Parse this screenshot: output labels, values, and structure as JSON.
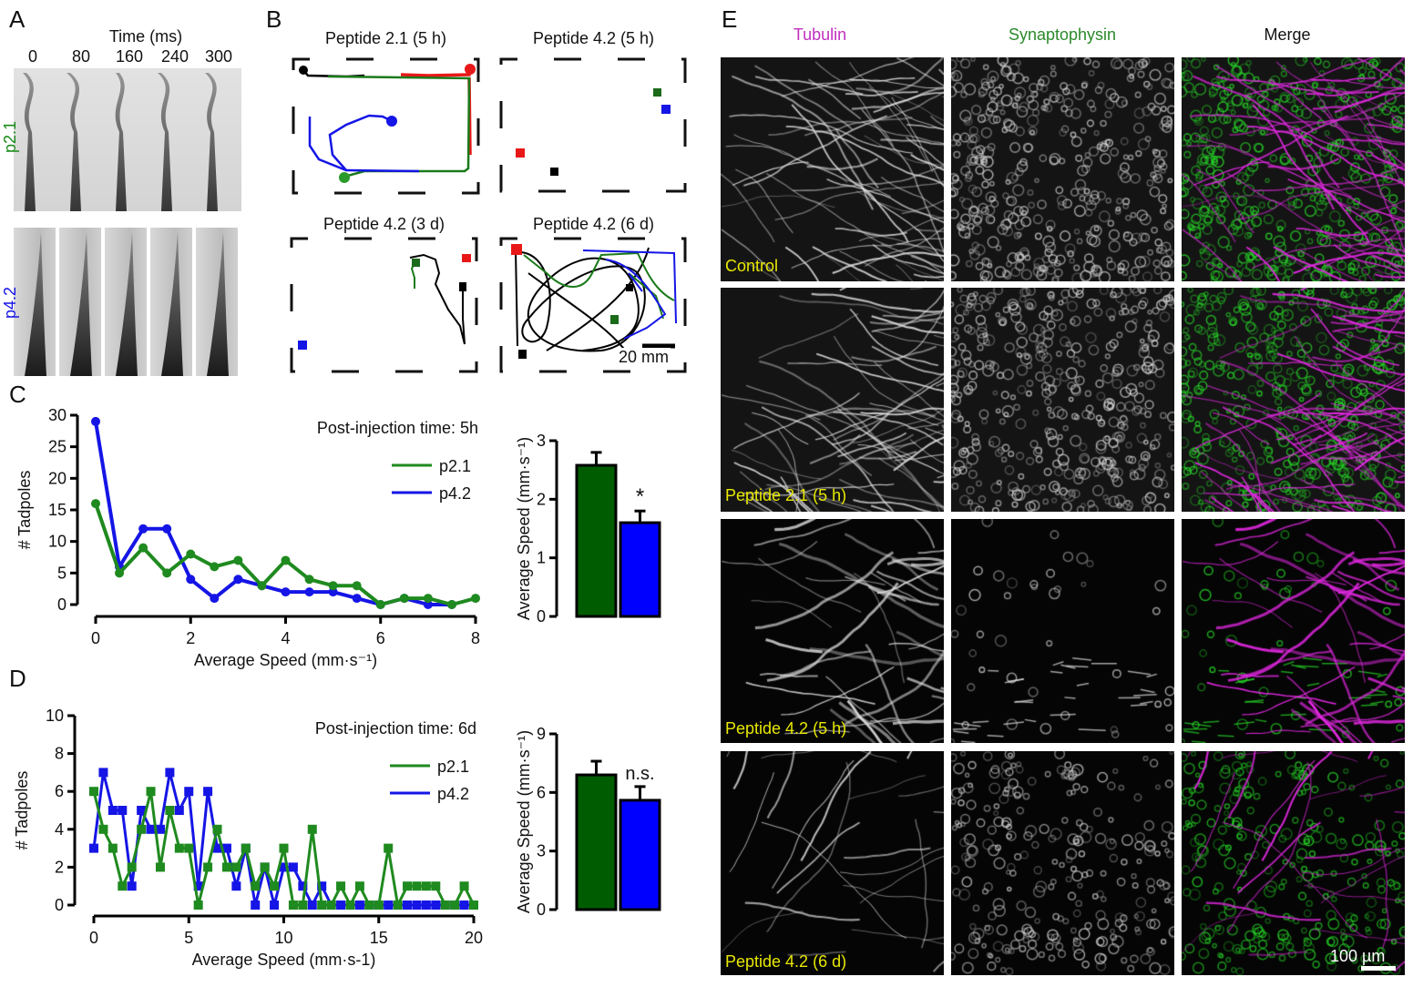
{
  "panel_labels": {
    "a": "A",
    "b": "B",
    "c": "C",
    "d": "D",
    "e": "E"
  },
  "panel_a": {
    "time_label": "Time (ms)",
    "times": [
      "0",
      "80",
      "160",
      "240",
      "300"
    ],
    "rows": [
      {
        "label": "p2.1",
        "color": "#1a8a1a"
      },
      {
        "label": "p4.2",
        "color": "#1515e6"
      }
    ]
  },
  "panel_b": {
    "arenas": [
      {
        "title": "Peptide 2.1 (5 h)"
      },
      {
        "title": "Peptide 4.2 (5 h)"
      },
      {
        "title": "Peptide 4.2 (3 d)"
      },
      {
        "title": "Peptide 4.2 (6 d)"
      }
    ],
    "track_colors": [
      "#000000",
      "#e81818",
      "#1a7a1a",
      "#1515e6"
    ],
    "scale_bar": "20 mm"
  },
  "chart_data": [
    {
      "type": "line",
      "panel": "C",
      "annotation": "Post-injection time: 5h",
      "xlabel": "Average Speed (mm·s⁻¹)",
      "ylabel": "# Tadpoles",
      "xlim": [
        0,
        8
      ],
      "ylim": [
        0,
        30
      ],
      "xticks": [
        "0",
        "2",
        "4",
        "6",
        "8"
      ],
      "yticks": [
        "0",
        "5",
        "10",
        "15",
        "20",
        "25",
        "30"
      ],
      "marker": "circle",
      "legend": "top-right",
      "x": [
        0,
        0.5,
        1,
        1.5,
        2,
        2.5,
        3,
        3.5,
        4,
        4.5,
        5,
        5.5,
        6,
        6.5,
        7,
        7.5,
        8
      ],
      "series": [
        {
          "name": "p2.1",
          "color": "#1f8a1f",
          "values": [
            16,
            5,
            9,
            5,
            8,
            6,
            7,
            3,
            7,
            4,
            3,
            3,
            0,
            1,
            1,
            0,
            1
          ]
        },
        {
          "name": "p4.2",
          "color": "#1515e6",
          "values": [
            29,
            6,
            12,
            12,
            4,
            1,
            4,
            3,
            2,
            2,
            2,
            1,
            0,
            1,
            0,
            0,
            null
          ]
        }
      ]
    },
    {
      "type": "bar",
      "panel": "C",
      "ylabel": "Average Speed (mm·s⁻¹)",
      "ylim": [
        0,
        3
      ],
      "yticks": [
        "0",
        "1",
        "2",
        "3"
      ],
      "categories": [
        "p2.1",
        "p4.2"
      ],
      "values": [
        2.58,
        1.6
      ],
      "errors": [
        0.22,
        0.2
      ],
      "colors": [
        "#005c00",
        "#0000ff"
      ],
      "annotations": [
        "",
        "*"
      ]
    },
    {
      "type": "line",
      "panel": "D",
      "annotation": "Post-injection time: 6d",
      "xlabel": "Average Speed (mm·s-1)",
      "ylabel": "# Tadpoles",
      "xlim": [
        0,
        20
      ],
      "ylim": [
        0,
        10
      ],
      "xticks": [
        "0",
        "5",
        "10",
        "15",
        "20"
      ],
      "yticks": [
        "0",
        "2",
        "4",
        "6",
        "8",
        "10"
      ],
      "marker": "square",
      "legend": "top-right",
      "x": [
        0,
        0.5,
        1,
        1.5,
        2,
        2.5,
        3,
        3.5,
        4,
        4.5,
        5,
        5.5,
        6,
        6.5,
        7,
        7.5,
        8,
        8.5,
        9,
        9.5,
        10,
        10.5,
        11,
        11.5,
        12,
        12.5,
        13,
        13.5,
        14,
        14.5,
        15,
        15.5,
        16,
        16.5,
        17,
        17.5,
        18,
        18.5,
        19,
        19.5,
        20
      ],
      "series": [
        {
          "name": "p2.1",
          "color": "#1f8a1f",
          "values": [
            6,
            4,
            3,
            1,
            2,
            4,
            6,
            2,
            5,
            3,
            3,
            0,
            2,
            4,
            2,
            2,
            3,
            1,
            2,
            1,
            3,
            0,
            0,
            4,
            0,
            0,
            1,
            0,
            1,
            0,
            0,
            3,
            0,
            1,
            1,
            1,
            1,
            0,
            0,
            1,
            0
          ]
        },
        {
          "name": "p4.2",
          "color": "#1515e6",
          "values": [
            3,
            7,
            5,
            5,
            1,
            5,
            4,
            4,
            7,
            5,
            6,
            1,
            6,
            3,
            3,
            1,
            3,
            0,
            2,
            0,
            2,
            2,
            1,
            0,
            1,
            0,
            0,
            0,
            0,
            0,
            0,
            0,
            0,
            0,
            0,
            0,
            0,
            0,
            0,
            0,
            0
          ]
        }
      ]
    },
    {
      "type": "bar",
      "panel": "D",
      "ylabel": "Average Speed (mm·s⁻¹)",
      "ylim": [
        0,
        9
      ],
      "yticks": [
        "0",
        "3",
        "6",
        "9"
      ],
      "categories": [
        "p2.1",
        "p4.2"
      ],
      "values": [
        6.9,
        5.6
      ],
      "errors": [
        0.7,
        0.7
      ],
      "colors": [
        "#005c00",
        "#0000ff"
      ],
      "annotations": [
        "",
        "n.s."
      ]
    }
  ],
  "panel_e": {
    "columns": [
      {
        "label": "Tubulin",
        "color": "#c030c0"
      },
      {
        "label": "Synaptophysin",
        "color": "#2a8a2a"
      },
      {
        "label": "Merge",
        "color": "#111111"
      }
    ],
    "rows": [
      "Control",
      "Peptide 2.1 (5 h)",
      "Peptide 4.2 (5 h)",
      "Peptide 4.2 (6 d)"
    ],
    "row_label_color": "#e8e800",
    "scale_bar": "100 µm"
  }
}
